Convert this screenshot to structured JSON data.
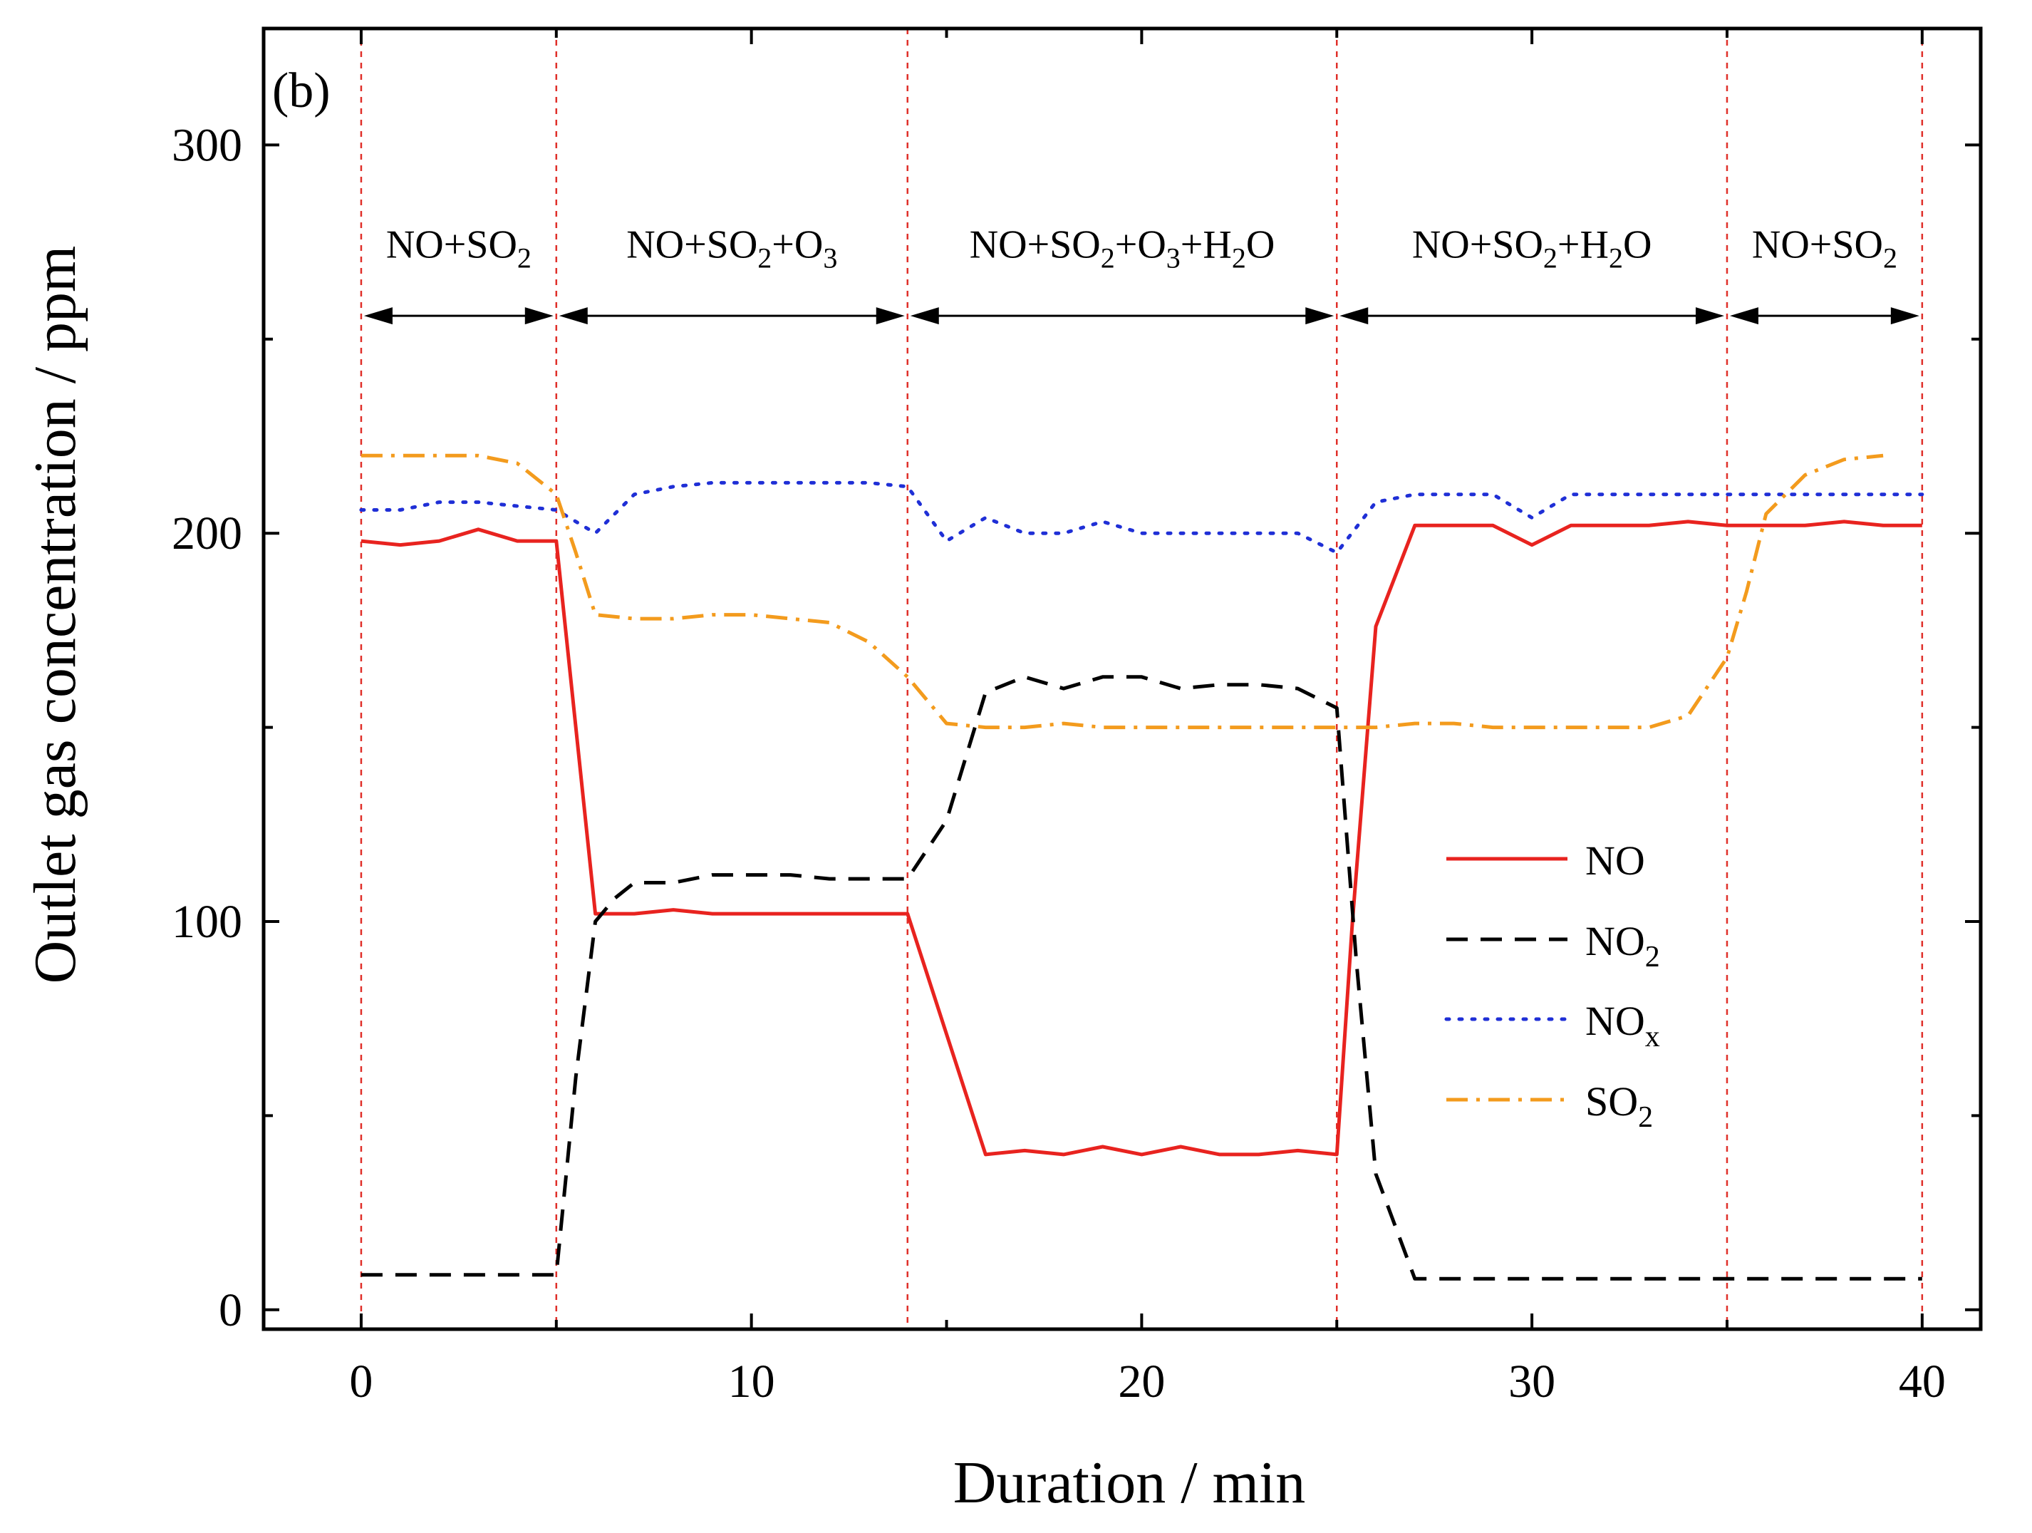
{
  "chart_data": {
    "type": "line",
    "panel_label": "(b)",
    "title": "",
    "xlabel": "Duration / min",
    "ylabel": "Outlet gas concentration / ppm",
    "xlim": [
      -2.5,
      41.5
    ],
    "ylim": [
      -5,
      330
    ],
    "xticks": [
      0,
      10,
      20,
      30,
      40
    ],
    "yticks": [
      0,
      100,
      200,
      300
    ],
    "x_minor_step": 5,
    "y_minor_step": 50,
    "phase_boundaries": [
      0,
      5,
      14,
      25,
      35,
      40
    ],
    "phase_boundary_color": "#e0302a",
    "phases": [
      {
        "label": "NO+SO₂",
        "start": 0,
        "end": 5
      },
      {
        "label": "NO+SO₂+O₃",
        "start": 5,
        "end": 14
      },
      {
        "label": "NO+SO₂+O₃+H₂O",
        "start": 14,
        "end": 25
      },
      {
        "label": "NO+SO₂+H₂O",
        "start": 25,
        "end": 35
      },
      {
        "label": "NO+SO₂",
        "start": 35,
        "end": 40
      }
    ],
    "phase_arrow_y": 256,
    "phase_label_y": 271,
    "series": [
      {
        "name": "NO",
        "color": "#e8231f",
        "style": "solid",
        "x": [
          0,
          1,
          2,
          3,
          4,
          5,
          6,
          7,
          8,
          9,
          10,
          11,
          12,
          13,
          14,
          15,
          16,
          17,
          18,
          19,
          20,
          21,
          22,
          23,
          24,
          25,
          25.4,
          26,
          27,
          28,
          29,
          30,
          31,
          32,
          33,
          34,
          35,
          36,
          37,
          38,
          39,
          40
        ],
        "y": [
          198,
          197,
          198,
          201,
          198,
          198,
          102,
          102,
          103,
          102,
          102,
          102,
          102,
          102,
          102,
          71,
          40,
          41,
          40,
          42,
          40,
          42,
          40,
          40,
          41,
          40,
          100,
          176,
          202,
          202,
          202,
          197,
          202,
          202,
          202,
          203,
          202,
          202,
          202,
          203,
          202,
          202
        ]
      },
      {
        "name": "NO₂",
        "color": "#000000",
        "style": "dashed",
        "x": [
          0,
          1,
          2,
          3,
          4,
          5,
          5.5,
          6,
          6.5,
          7,
          8,
          9,
          10,
          11,
          12,
          13,
          14,
          15,
          16,
          17,
          18,
          19,
          20,
          21,
          22,
          23,
          24,
          25,
          25.5,
          26,
          27,
          28,
          29,
          30,
          31,
          32,
          33,
          34,
          35,
          36,
          37,
          38,
          39,
          40
        ],
        "y": [
          9,
          9,
          9,
          9,
          9,
          9,
          60,
          100,
          106,
          110,
          110,
          112,
          112,
          112,
          111,
          111,
          111,
          126,
          159,
          163,
          160,
          163,
          163,
          160,
          161,
          161,
          160,
          155,
          90,
          35,
          8,
          8,
          8,
          8,
          8,
          8,
          8,
          8,
          8,
          8,
          8,
          8,
          8,
          8
        ]
      },
      {
        "name": "NOₓ",
        "color": "#1f2fd6",
        "style": "dotted",
        "x": [
          0,
          1,
          2,
          3,
          4,
          5,
          6,
          7,
          8,
          9,
          10,
          11,
          12,
          13,
          14,
          15,
          16,
          17,
          18,
          19,
          20,
          21,
          22,
          23,
          24,
          25,
          26,
          27,
          28,
          29,
          30,
          31,
          32,
          33,
          34,
          35,
          36,
          37,
          38,
          39,
          40
        ],
        "y": [
          206,
          206,
          208,
          208,
          207,
          206,
          200,
          210,
          212,
          213,
          213,
          213,
          213,
          213,
          212,
          198,
          204,
          200,
          200,
          203,
          200,
          200,
          200,
          200,
          200,
          195,
          208,
          210,
          210,
          210,
          204,
          210,
          210,
          210,
          210,
          210,
          210,
          210,
          210,
          210,
          210
        ]
      },
      {
        "name": "SO₂",
        "color": "#f39b1d",
        "style": "dashdot",
        "x": [
          0,
          1,
          2,
          3,
          4,
          5,
          5.5,
          6,
          7,
          8,
          9,
          10,
          11,
          12,
          13,
          14,
          15,
          16,
          17,
          18,
          19,
          20,
          21,
          22,
          23,
          24,
          25,
          26,
          27,
          28,
          29,
          30,
          31,
          32,
          33,
          34,
          35,
          35.5,
          36,
          37,
          38,
          39
        ],
        "y": [
          220,
          220,
          220,
          220,
          218,
          210,
          195,
          179,
          178,
          178,
          179,
          179,
          178,
          177,
          172,
          163,
          151,
          150,
          150,
          151,
          150,
          150,
          150,
          150,
          150,
          150,
          150,
          150,
          151,
          151,
          150,
          150,
          150,
          150,
          150,
          153,
          168,
          185,
          205,
          215,
          219,
          220
        ]
      }
    ],
    "legend": {
      "position": "center-right",
      "entries": [
        "NO",
        "NO₂",
        "NOₓ",
        "SO₂"
      ]
    }
  }
}
